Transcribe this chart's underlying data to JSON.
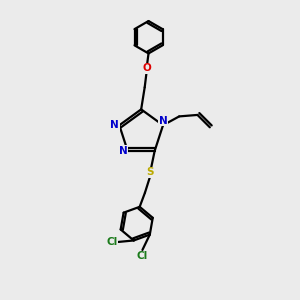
{
  "bg_color": "#ebebeb",
  "bond_color": "#000000",
  "N_color": "#0000cc",
  "O_color": "#dd0000",
  "S_color": "#bbaa00",
  "Cl_color": "#1a7a1a",
  "line_width": 1.6,
  "figsize": [
    3.0,
    3.0
  ],
  "dpi": 100,
  "xlim": [
    0,
    10
  ],
  "ylim": [
    0,
    10
  ]
}
